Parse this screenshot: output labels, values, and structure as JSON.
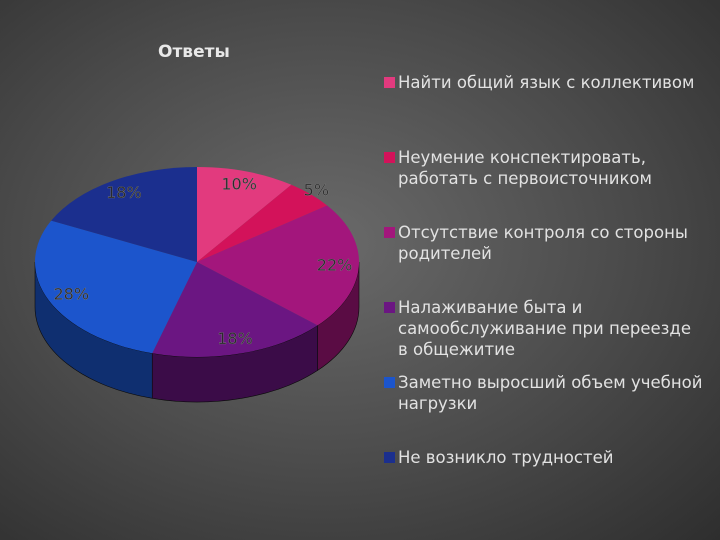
{
  "chart_data": {
    "type": "pie",
    "title": "Ответы",
    "categories": [
      "Найти общий язык с коллективом",
      "Неумение конспектировать, работать с первоисточником",
      "Отсутствие контроля со стороны родителей",
      "Налаживание быта и самообслуживание при переезде в общежитие",
      "Заметно выросший объем учебной нагрузки",
      "Не возникло трудностей"
    ],
    "values": [
      10,
      5,
      22,
      18,
      28,
      18
    ],
    "value_labels": [
      "10%",
      "5%",
      "22%",
      "18%",
      "28%",
      "18%"
    ],
    "colors": [
      "#e23a7e",
      "#d3125a",
      "#a3167c",
      "#6b1682",
      "#1c55cc",
      "#1b2f8e"
    ],
    "legend": "right"
  }
}
